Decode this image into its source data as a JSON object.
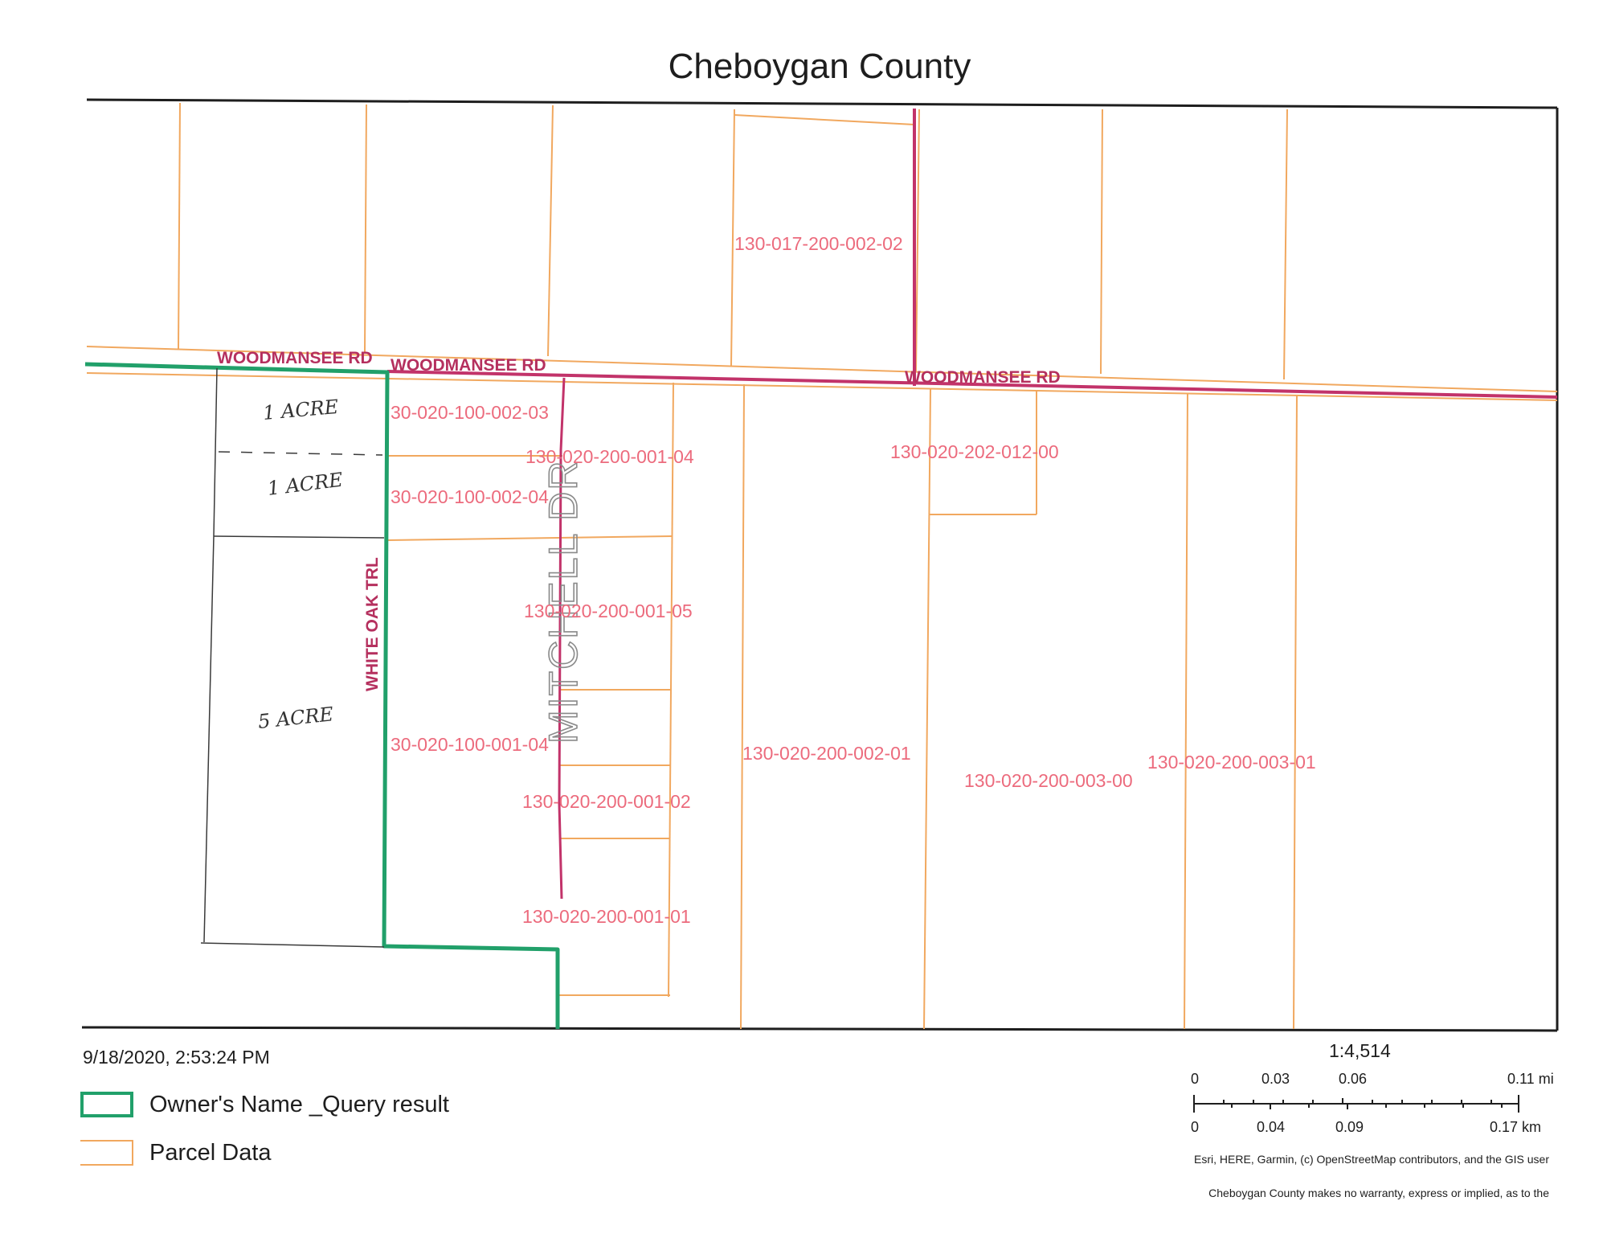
{
  "title": "Cheboygan County",
  "timestamp": "9/18/2020, 2:53:24 PM",
  "legend": [
    {
      "label": "Owner's Name _Query result",
      "color": "#21a06a"
    },
    {
      "label": "Parcel Data",
      "color": "#f1a85f"
    }
  ],
  "scale": {
    "ratio": "1:4,514",
    "mi_ticks": [
      "0",
      "0.03",
      "0.06",
      "0.11 mi"
    ],
    "km_ticks": [
      "0",
      "0.04",
      "0.09",
      "0.17 km"
    ]
  },
  "attribution": "Esri, HERE, Garmin, (c) OpenStreetMap contributors, and the GIS user",
  "disclaimer": "Cheboygan County makes no warranty, express or implied, as to the",
  "roads": {
    "woodmansee_1": "WOODMANSEE RD",
    "woodmansee_2": "WOODMANSEE RD",
    "woodmansee_3": "WOODMANSEE RD",
    "white_oak": "WHITE OAK TRL",
    "mitchell": "MITCHELL DR"
  },
  "parcels": {
    "p017_200_002_02": "130-017-200-002-02",
    "p100_002_03": "30-020-100-002-03",
    "p200_001_04": "130-020-200-001-04",
    "p202_012_00": "130-020-202-012-00",
    "p100_002_04": "30-020-100-002-04",
    "p200_001_05": "130-020-200-001-05",
    "p100_001_04": "30-020-100-001-04",
    "p200_002_01": "130-020-200-002-01",
    "p200_003_00": "130-020-200-003-00",
    "p200_003_01": "130-020-200-003-01",
    "p200_001_02": "130-020-200-001-02",
    "p200_001_01": "130-020-200-001-01"
  },
  "annotations": {
    "acre_1a": "1 ACRE",
    "acre_1b": "1 ACRE",
    "acre_5": "5 ACRE"
  },
  "colors": {
    "parcel_line": "#f1a85f",
    "road_line": "#c2336a",
    "query_outline": "#21a06a",
    "map_border": "#1e1e1e"
  }
}
